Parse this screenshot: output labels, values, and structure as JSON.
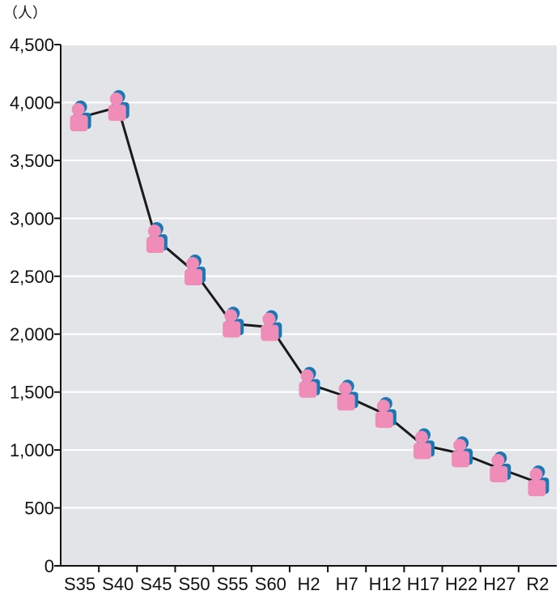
{
  "chart_data": {
    "type": "line",
    "unit_label": "（人）",
    "categories": [
      "S35",
      "S40",
      "S45",
      "S50",
      "S55",
      "S60",
      "H2",
      "H7",
      "H12",
      "H17",
      "H22",
      "H27",
      "R2"
    ],
    "series": [
      {
        "values": [
          3870,
          3960,
          2820,
          2540,
          2090,
          2060,
          1570,
          1460,
          1310,
          1040,
          970,
          840,
          720
        ]
      }
    ],
    "ylim": [
      0,
      4500
    ],
    "yticks": [
      0,
      500,
      1000,
      1500,
      2000,
      2500,
      3000,
      3500,
      4000,
      4500
    ],
    "ytick_labels": [
      "0",
      "500",
      "1,000",
      "1,500",
      "2,000",
      "2,500",
      "3,000",
      "3,500",
      "4,000",
      "4,500"
    ],
    "grid": true,
    "colors": {
      "plot_background": "#e3e4e8",
      "gridline": "#ffffff",
      "line": "#1a1a1a",
      "marker_body": "#f08cb8",
      "marker_shadow": "#1878b4"
    },
    "marker_icon": "person-icon"
  }
}
